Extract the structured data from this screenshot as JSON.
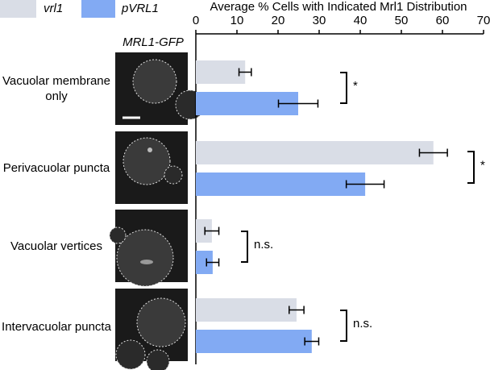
{
  "chart_data": {
    "type": "bar",
    "orientation": "horizontal",
    "x_label": "Average % Cells with Indicated Mrl1 Distribution",
    "image_label": "MRL1-GFP",
    "categories": [
      "Vacuolar membrane only",
      "Perivacuolar puncta",
      "Vacuolar vertices",
      "Intervacuolar puncta"
    ],
    "series": [
      {
        "name": "vrl1",
        "color": "#d9dde6",
        "values": [
          12,
          57.8,
          3.9,
          24.5
        ],
        "errors": [
          1.5,
          3.4,
          1.7,
          1.8
        ]
      },
      {
        "name": "pVRL1",
        "color": "#82aaf3",
        "values": [
          24.9,
          41.2,
          4.1,
          28.2
        ],
        "errors": [
          4.8,
          4.6,
          1.5,
          1.7
        ]
      }
    ],
    "significance": [
      "*",
      "*",
      "n.s.",
      "n.s."
    ],
    "xlim": [
      0,
      70
    ],
    "xticks": [
      0,
      10,
      20,
      30,
      40,
      50,
      60,
      70
    ]
  }
}
